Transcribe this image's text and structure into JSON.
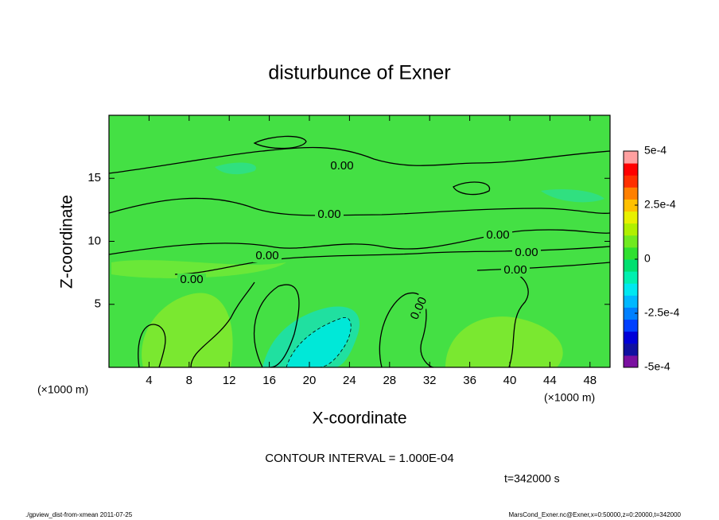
{
  "chart_data": {
    "type": "contour",
    "title": "disturbunce of Exner",
    "xlabel": "X-coordinate",
    "ylabel": "Z-coordinate",
    "x_unit": "(×1000 m)",
    "y_unit": "(×1000 m)",
    "xlim": [
      0,
      50
    ],
    "ylim": [
      0,
      20
    ],
    "xticks": [
      4,
      8,
      12,
      16,
      20,
      24,
      28,
      32,
      36,
      40,
      44,
      48
    ],
    "yticks": [
      5,
      10,
      15
    ],
    "colorbar": {
      "lim": [
        -0.0005,
        0.0005
      ],
      "ticks": [
        {
          "value": -0.0005,
          "label": "-5e-4"
        },
        {
          "value": -0.00025,
          "label": "-2.5e-4"
        },
        0,
        {
          "value": 0.00025,
          "label": "2.5e-4"
        },
        {
          "value": 0.0005,
          "label": "5e-4"
        }
      ],
      "colors": [
        "#7a10a0",
        "#1010a0",
        "#0000d8",
        "#0040ff",
        "#0080ff",
        "#00b8ff",
        "#00e8f0",
        "#00f0b0",
        "#00e070",
        "#30e030",
        "#70ea20",
        "#b0f000",
        "#e8f000",
        "#ffc000",
        "#ff8000",
        "#ff3000",
        "#ff0000",
        "#ffa0a0"
      ]
    },
    "contour_labels": [
      "0.00",
      "0.00",
      "0.00",
      "0.00",
      "0.00",
      "0.00",
      "0.00",
      "0.00"
    ],
    "annotation": "CONTOUR INTERVAL = 1.000E-04",
    "time_label": "t=342000 s",
    "footer_left": "./gpview_dist-from-xmean  2011-07-25",
    "footer_right": "MarsCond_Exner.nc@Exner,x=0:50000,z=0:20000,t=342000"
  }
}
